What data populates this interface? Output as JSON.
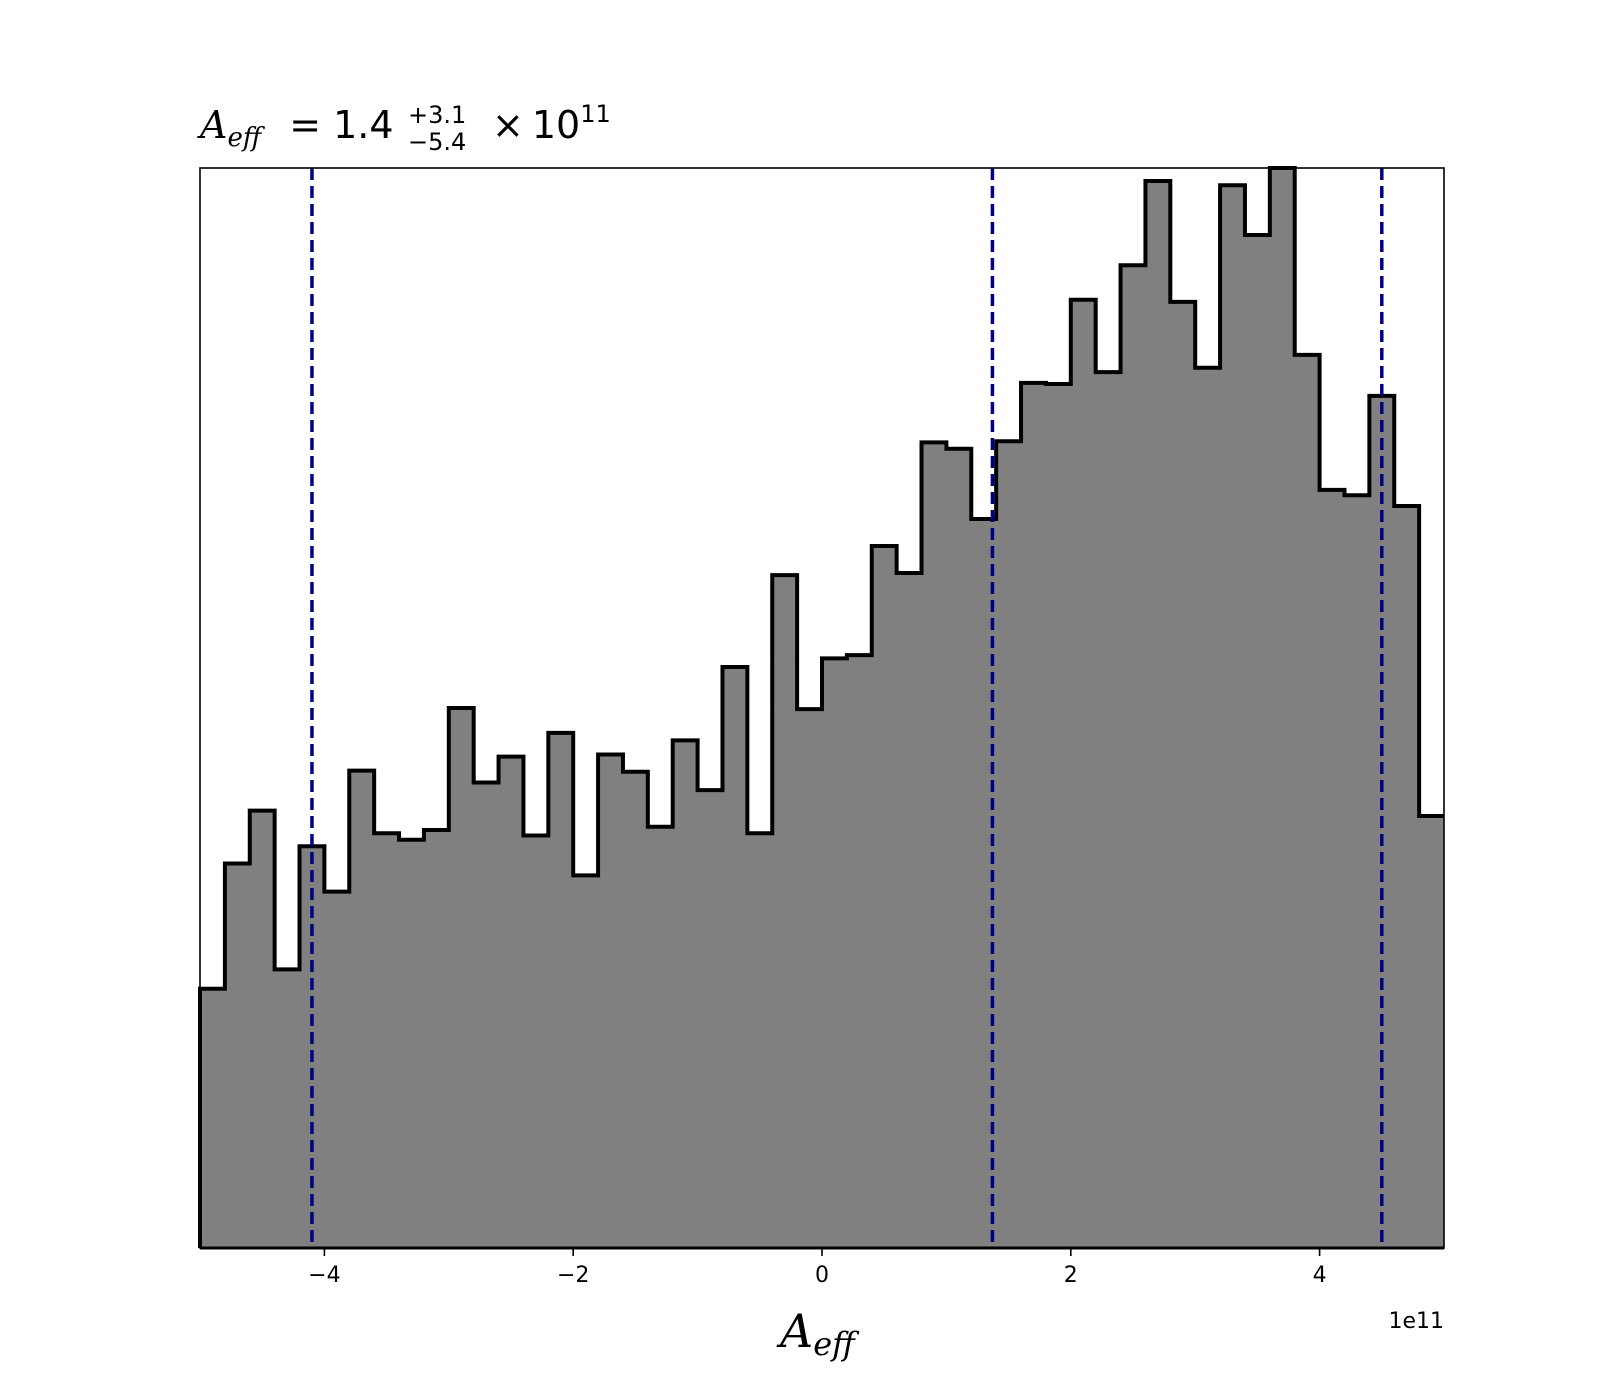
{
  "chart_data": {
    "type": "histogram",
    "title": {
      "symbol": "A",
      "symbol_sub": "eff",
      "equals": "=",
      "median": "1.4",
      "plus": "+3.1",
      "minus": "−5.4",
      "times": "×",
      "base": "10",
      "exponent": "11"
    },
    "xlabel": {
      "symbol": "A",
      "sub": "eff"
    },
    "x_offset_label": "1e11",
    "xlim": [
      -5.0,
      5.0
    ],
    "ylim": [
      0,
      1.0
    ],
    "x_ticks": [
      {
        "value": -4,
        "label": "−4"
      },
      {
        "value": -2,
        "label": "−2"
      },
      {
        "value": 0,
        "label": "0"
      },
      {
        "value": 2,
        "label": "2"
      },
      {
        "value": 4,
        "label": "4"
      }
    ],
    "bins": {
      "start": -5.0,
      "width": 0.2,
      "counts": [
        0.24,
        0.356,
        0.405,
        0.258,
        0.372,
        0.33,
        0.442,
        0.384,
        0.378,
        0.387,
        0.5,
        0.431,
        0.455,
        0.382,
        0.477,
        0.345,
        0.457,
        0.441,
        0.39,
        0.47,
        0.424,
        0.538,
        0.384,
        0.623,
        0.499,
        0.546,
        0.549,
        0.65,
        0.625,
        0.746,
        0.74,
        0.675,
        0.747,
        0.801,
        0.8,
        0.878,
        0.811,
        0.91,
        0.988,
        0.876,
        0.815,
        0.984,
        0.938,
        1.0,
        0.827,
        0.702,
        0.697,
        0.789,
        0.687,
        0.4
      ]
    },
    "quantile_lines": [
      -4.1,
      1.37,
      4.5
    ],
    "colors": {
      "fill": "#808080",
      "edge": "#000000",
      "quantile": "#000080"
    }
  }
}
